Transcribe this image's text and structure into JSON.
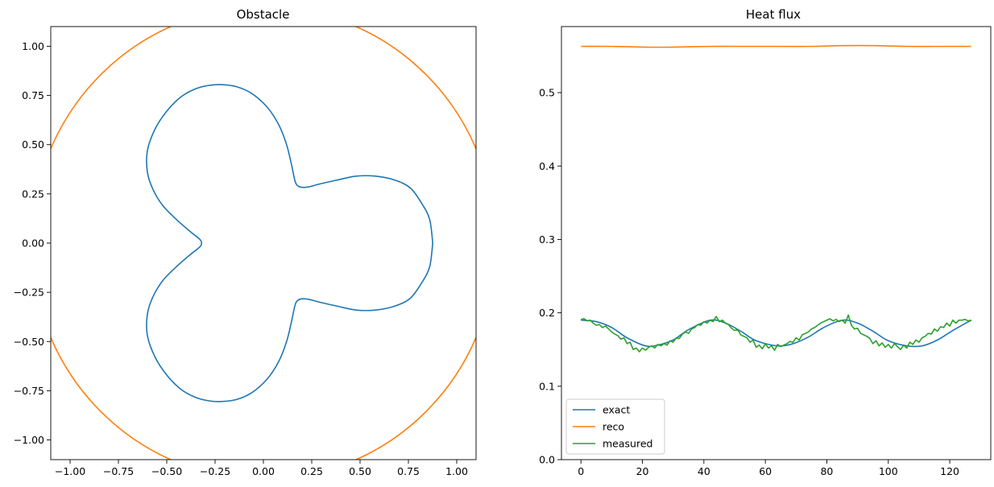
{
  "chart_data": [
    {
      "type": "line",
      "title": "Obstacle",
      "xlabel": "",
      "ylabel": "",
      "xlim": [
        -1.1,
        1.1
      ],
      "ylim": [
        -1.1,
        1.1
      ],
      "xticks": [
        -1.0,
        -0.75,
        -0.5,
        -0.25,
        0.0,
        0.25,
        0.5,
        0.75,
        1.0
      ],
      "yticks": [
        -1.0,
        -0.75,
        -0.5,
        -0.25,
        0.0,
        0.25,
        0.5,
        0.75,
        1.0
      ],
      "xtick_labels": [
        "−1.00",
        "−0.75",
        "−0.50",
        "−0.25",
        "0.00",
        "0.25",
        "0.50",
        "0.75",
        "1.00"
      ],
      "ytick_labels": [
        "−1.00",
        "−0.75",
        "−0.50",
        "−0.25",
        "0.00",
        "0.25",
        "0.50",
        "0.75",
        "1.00"
      ],
      "grid": false,
      "series": [
        {
          "color": "#1f77b4",
          "x": [
            0.876,
            0.86,
            0.82,
            0.76,
            0.68,
            0.58,
            0.48,
            0.38,
            0.29,
            0.23,
            0.19,
            0.17,
            0.16,
            0.145,
            0.12,
            0.08,
            0.02,
            -0.06,
            -0.14,
            -0.22,
            -0.29,
            -0.36,
            -0.43,
            -0.5,
            -0.56,
            -0.6,
            -0.6,
            -0.57,
            -0.52,
            -0.45,
            -0.38,
            -0.33,
            -0.32,
            -0.33,
            -0.38,
            -0.45,
            -0.52,
            -0.57,
            -0.6,
            -0.6,
            -0.56,
            -0.5,
            -0.43,
            -0.36,
            -0.29,
            -0.22,
            -0.14,
            -0.06,
            0.02,
            0.08,
            0.12,
            0.145,
            0.16,
            0.17,
            0.19,
            0.23,
            0.29,
            0.38,
            0.48,
            0.58,
            0.68,
            0.76,
            0.82,
            0.86,
            0.876
          ],
          "y": [
            0.0,
            0.12,
            0.2,
            0.28,
            0.32,
            0.34,
            0.34,
            0.32,
            0.3,
            0.285,
            0.285,
            0.3,
            0.33,
            0.4,
            0.5,
            0.6,
            0.69,
            0.76,
            0.795,
            0.805,
            0.8,
            0.78,
            0.74,
            0.67,
            0.58,
            0.47,
            0.36,
            0.27,
            0.19,
            0.12,
            0.06,
            0.02,
            0.0,
            -0.02,
            -0.06,
            -0.12,
            -0.19,
            -0.27,
            -0.36,
            -0.47,
            -0.58,
            -0.67,
            -0.74,
            -0.78,
            -0.8,
            -0.805,
            -0.795,
            -0.76,
            -0.69,
            -0.6,
            -0.5,
            -0.4,
            -0.33,
            -0.3,
            -0.285,
            -0.285,
            -0.3,
            -0.32,
            -0.34,
            -0.34,
            -0.32,
            -0.28,
            -0.2,
            -0.12,
            0.0
          ]
        },
        {
          "color": "#ff7f0e",
          "shape": "circle",
          "center": [
            0.0,
            0.0
          ],
          "radius": 1.2
        }
      ]
    },
    {
      "type": "line",
      "title": "Heat flux",
      "xlabel": "",
      "ylabel": "",
      "xlim": [
        -6.35,
        133.35
      ],
      "ylim": [
        0.0,
        0.59
      ],
      "xticks": [
        0,
        20,
        40,
        60,
        80,
        100,
        120
      ],
      "yticks": [
        0.0,
        0.1,
        0.2,
        0.3,
        0.4,
        0.5
      ],
      "xtick_labels": [
        "0",
        "20",
        "40",
        "60",
        "80",
        "100",
        "120"
      ],
      "ytick_labels": [
        "0.0",
        "0.1",
        "0.2",
        "0.3",
        "0.4",
        "0.5"
      ],
      "grid": false,
      "legend_position": "lower-left",
      "series": [
        {
          "name": "exact",
          "color": "#1f77b4",
          "x": [
            0,
            5,
            10,
            15,
            21,
            25,
            30,
            35,
            42,
            47,
            52,
            57,
            64,
            69,
            74,
            79,
            85,
            90,
            95,
            100,
            106,
            111,
            116,
            121,
            127
          ],
          "y": [
            0.19,
            0.188,
            0.18,
            0.166,
            0.155,
            0.156,
            0.163,
            0.177,
            0.19,
            0.186,
            0.175,
            0.162,
            0.155,
            0.158,
            0.167,
            0.18,
            0.19,
            0.186,
            0.175,
            0.162,
            0.155,
            0.155,
            0.163,
            0.176,
            0.19
          ]
        },
        {
          "name": "reco",
          "color": "#ff7f0e",
          "x": [
            0,
            10,
            21,
            30,
            42,
            50,
            64,
            75,
            85,
            95,
            106,
            116,
            127
          ],
          "y": [
            0.563,
            0.563,
            0.562,
            0.562,
            0.563,
            0.563,
            0.563,
            0.563,
            0.564,
            0.564,
            0.563,
            0.563,
            0.563
          ],
          "smooth": true
        },
        {
          "name": "measured",
          "color": "#2ca02c",
          "x": [
            0,
            1,
            2,
            3,
            4,
            5,
            6,
            7,
            8,
            9,
            10,
            11,
            12,
            13,
            14,
            15,
            16,
            17,
            18,
            19,
            20,
            21,
            22,
            23,
            24,
            25,
            26,
            27,
            28,
            29,
            30,
            31,
            32,
            33,
            34,
            35,
            36,
            37,
            38,
            39,
            40,
            41,
            42,
            43,
            44,
            45,
            46,
            47,
            48,
            49,
            50,
            51,
            52,
            53,
            54,
            55,
            56,
            57,
            58,
            59,
            60,
            61,
            62,
            63,
            64,
            65,
            66,
            67,
            68,
            69,
            70,
            71,
            72,
            73,
            74,
            75,
            76,
            77,
            78,
            79,
            80,
            81,
            82,
            83,
            84,
            85,
            86,
            87,
            88,
            89,
            90,
            91,
            92,
            93,
            94,
            95,
            96,
            97,
            98,
            99,
            100,
            101,
            102,
            103,
            104,
            105,
            106,
            107,
            108,
            109,
            110,
            111,
            112,
            113,
            114,
            115,
            116,
            117,
            118,
            119,
            120,
            121,
            122,
            123,
            124,
            125,
            126,
            127
          ],
          "y": [
            0.191,
            0.192,
            0.189,
            0.19,
            0.186,
            0.183,
            0.184,
            0.18,
            0.182,
            0.178,
            0.174,
            0.171,
            0.169,
            0.164,
            0.166,
            0.158,
            0.16,
            0.15,
            0.152,
            0.147,
            0.152,
            0.149,
            0.153,
            0.155,
            0.152,
            0.157,
            0.155,
            0.158,
            0.156,
            0.162,
            0.16,
            0.166,
            0.165,
            0.171,
            0.174,
            0.172,
            0.178,
            0.18,
            0.184,
            0.183,
            0.188,
            0.186,
            0.19,
            0.188,
            0.195,
            0.188,
            0.19,
            0.186,
            0.184,
            0.179,
            0.176,
            0.177,
            0.17,
            0.168,
            0.166,
            0.16,
            0.163,
            0.153,
            0.156,
            0.151,
            0.158,
            0.152,
            0.155,
            0.149,
            0.157,
            0.154,
            0.156,
            0.158,
            0.161,
            0.16,
            0.166,
            0.163,
            0.17,
            0.172,
            0.174,
            0.178,
            0.18,
            0.183,
            0.186,
            0.188,
            0.19,
            0.192,
            0.189,
            0.191,
            0.188,
            0.19,
            0.186,
            0.197,
            0.183,
            0.178,
            0.179,
            0.172,
            0.17,
            0.168,
            0.165,
            0.158,
            0.162,
            0.155,
            0.159,
            0.153,
            0.157,
            0.152,
            0.158,
            0.154,
            0.15,
            0.156,
            0.152,
            0.16,
            0.157,
            0.163,
            0.16,
            0.166,
            0.168,
            0.172,
            0.171,
            0.178,
            0.175,
            0.181,
            0.18,
            0.186,
            0.182,
            0.19,
            0.186,
            0.19,
            0.19,
            0.191,
            0.189,
            0.19
          ]
        }
      ]
    }
  ]
}
